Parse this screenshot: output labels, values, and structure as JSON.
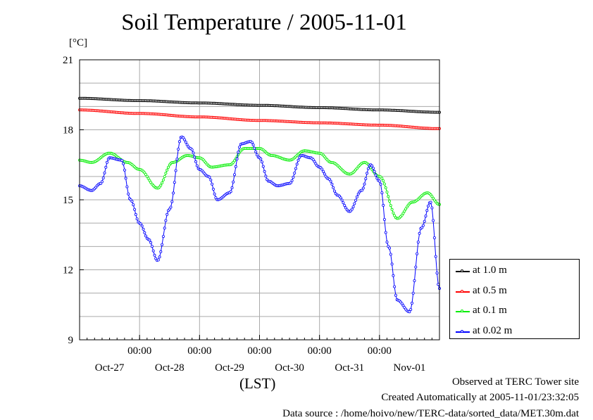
{
  "title": "Soil Temperature / 2005-11-01",
  "unit_label": "[°C]",
  "x_label": "(LST)",
  "footer": {
    "line1": "Observed at TERC Tower site",
    "line2": "Created Automatically at 2005-11-01/23:32:05",
    "line3": "Data source : /home/hoivo/new/TERC-data/sorted_data/MET.30m.dat"
  },
  "chart_data": {
    "type": "line",
    "title": "Soil Temperature / 2005-11-01",
    "ylabel": "[°C]",
    "xlabel": "(LST)",
    "ylim": [
      9,
      21
    ],
    "yticks": [
      9,
      12,
      15,
      18,
      21
    ],
    "xlim": [
      -1.0,
      5.0
    ],
    "xticks": [
      0,
      1,
      2,
      3,
      4
    ],
    "xtick_time": "00:00",
    "xtick_dates": [
      "Oct-27",
      "Oct-28",
      "Oct-29",
      "Oct-30",
      "Oct-31",
      "Nov-01"
    ],
    "grid": true,
    "legend_position": "bottom-right, outside plot",
    "series": [
      {
        "name": "at 1.0 m",
        "color": "#000000",
        "x": [
          -1.0,
          0.0,
          1.0,
          2.0,
          3.0,
          4.0,
          5.0
        ],
        "y": [
          19.35,
          19.25,
          19.15,
          19.05,
          18.95,
          18.85,
          18.75
        ]
      },
      {
        "name": "at 0.5 m",
        "color": "#ff0000",
        "x": [
          -1.0,
          0.0,
          1.0,
          2.0,
          3.0,
          4.0,
          5.0
        ],
        "y": [
          18.85,
          18.7,
          18.55,
          18.4,
          18.3,
          18.2,
          18.05
        ]
      },
      {
        "name": "at 0.1 m",
        "color": "#00ee00",
        "x": [
          -1.0,
          -0.8,
          -0.5,
          -0.2,
          0.0,
          0.3,
          0.55,
          0.8,
          1.0,
          1.2,
          1.5,
          1.75,
          2.0,
          2.2,
          2.5,
          2.75,
          3.0,
          3.2,
          3.5,
          3.75,
          4.0,
          4.3,
          4.55,
          4.8,
          5.0
        ],
        "y": [
          16.7,
          16.6,
          17.0,
          16.6,
          16.3,
          15.5,
          16.6,
          16.9,
          16.8,
          16.4,
          16.5,
          17.2,
          17.2,
          16.9,
          16.7,
          17.1,
          17.0,
          16.6,
          16.1,
          16.6,
          16.0,
          14.2,
          14.9,
          15.3,
          14.8
        ]
      },
      {
        "name": "at 0.02 m",
        "color": "#0000ff",
        "x": [
          -1.0,
          -0.8,
          -0.65,
          -0.5,
          -0.3,
          -0.15,
          0.0,
          0.15,
          0.3,
          0.5,
          0.7,
          0.85,
          1.0,
          1.15,
          1.3,
          1.5,
          1.7,
          1.85,
          2.0,
          2.15,
          2.3,
          2.5,
          2.7,
          2.85,
          3.0,
          3.15,
          3.3,
          3.5,
          3.7,
          3.85,
          4.0,
          4.15,
          4.3,
          4.5,
          4.7,
          4.85,
          5.0
        ],
        "y": [
          15.6,
          15.4,
          15.7,
          16.8,
          16.7,
          15.0,
          14.0,
          13.3,
          12.4,
          14.6,
          17.7,
          17.2,
          16.3,
          16.0,
          15.0,
          15.3,
          17.4,
          17.5,
          16.8,
          15.8,
          15.6,
          15.7,
          16.9,
          16.8,
          16.4,
          15.9,
          15.2,
          14.5,
          15.4,
          16.5,
          15.8,
          13.0,
          10.7,
          10.2,
          13.8,
          14.9,
          11.2
        ]
      }
    ]
  }
}
